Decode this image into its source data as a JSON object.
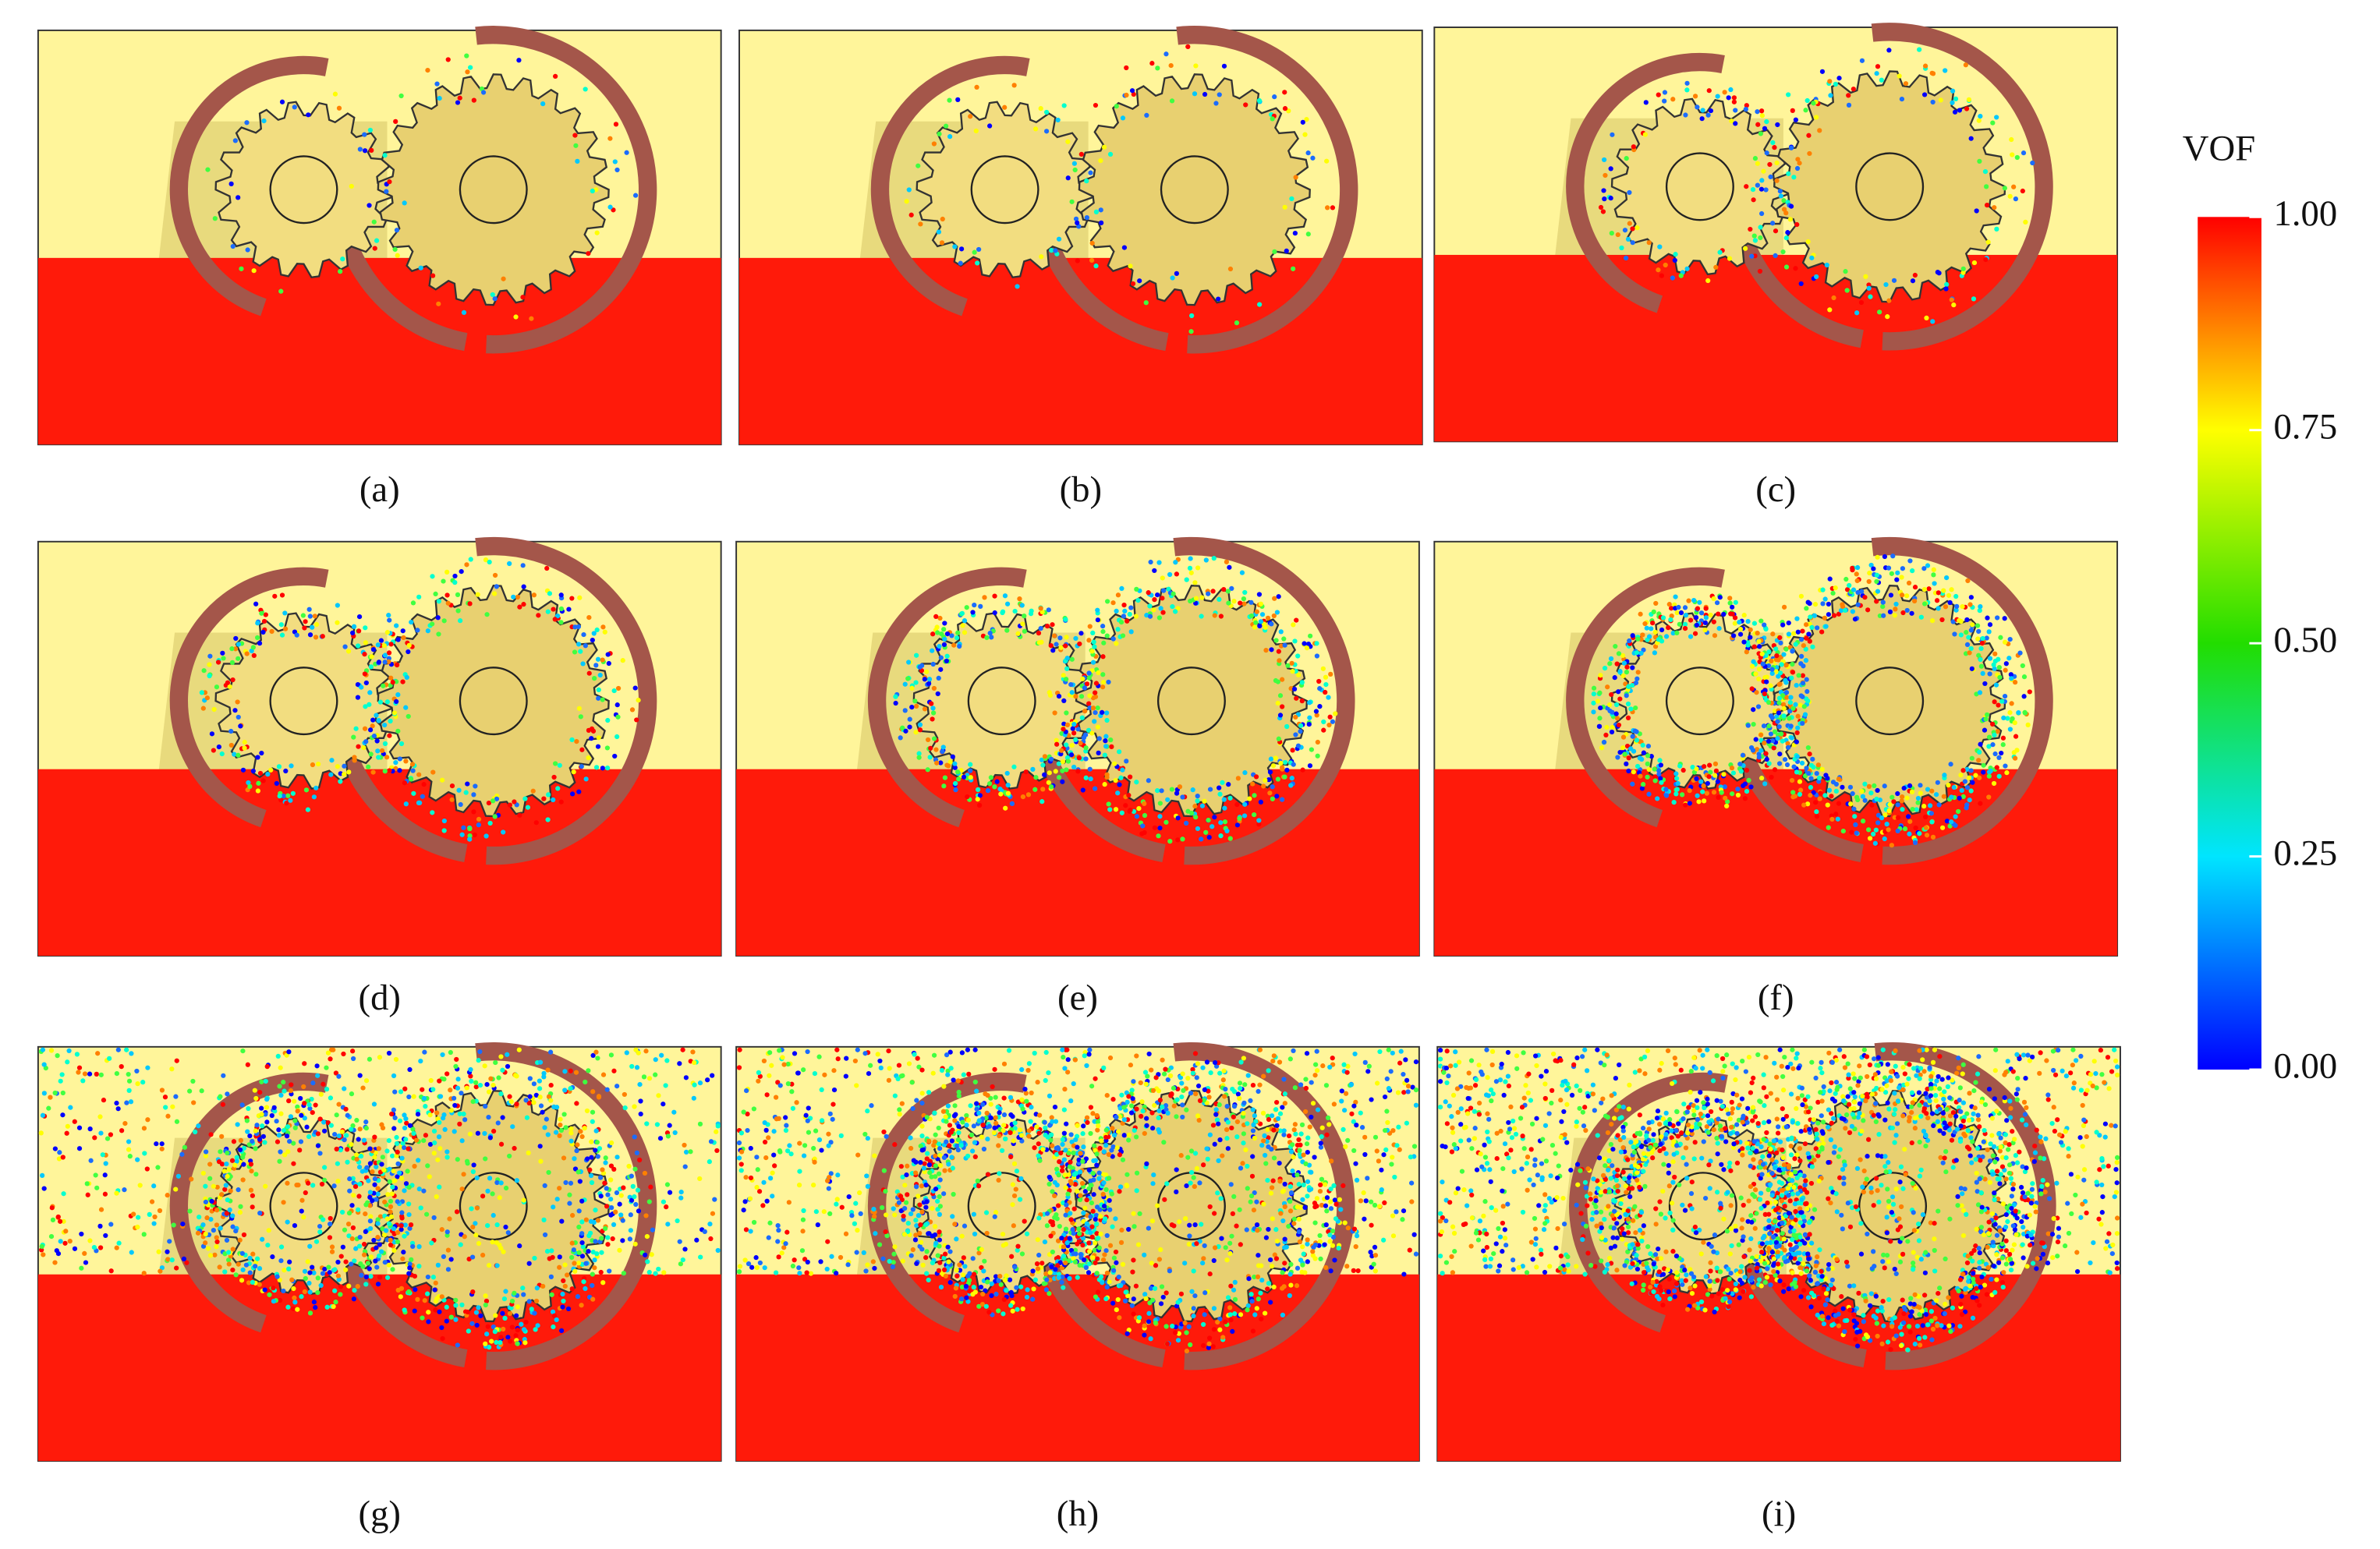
{
  "panels": [
    {
      "label": "(a)"
    },
    {
      "label": "(b)"
    },
    {
      "label": "(c)"
    },
    {
      "label": "(d)"
    },
    {
      "label": "(e)"
    },
    {
      "label": "(f)"
    },
    {
      "label": "(g)"
    },
    {
      "label": "(h)"
    },
    {
      "label": "(i)"
    }
  ],
  "colorbar": {
    "title": "VOF",
    "ticks": [
      {
        "value": 1,
        "label": "1.00"
      },
      {
        "value": 0.75,
        "label": "0.75"
      },
      {
        "value": 0.5,
        "label": "0.50"
      },
      {
        "value": 0.25,
        "label": "0.25"
      },
      {
        "value": 0,
        "label": "0.00"
      }
    ]
  }
}
